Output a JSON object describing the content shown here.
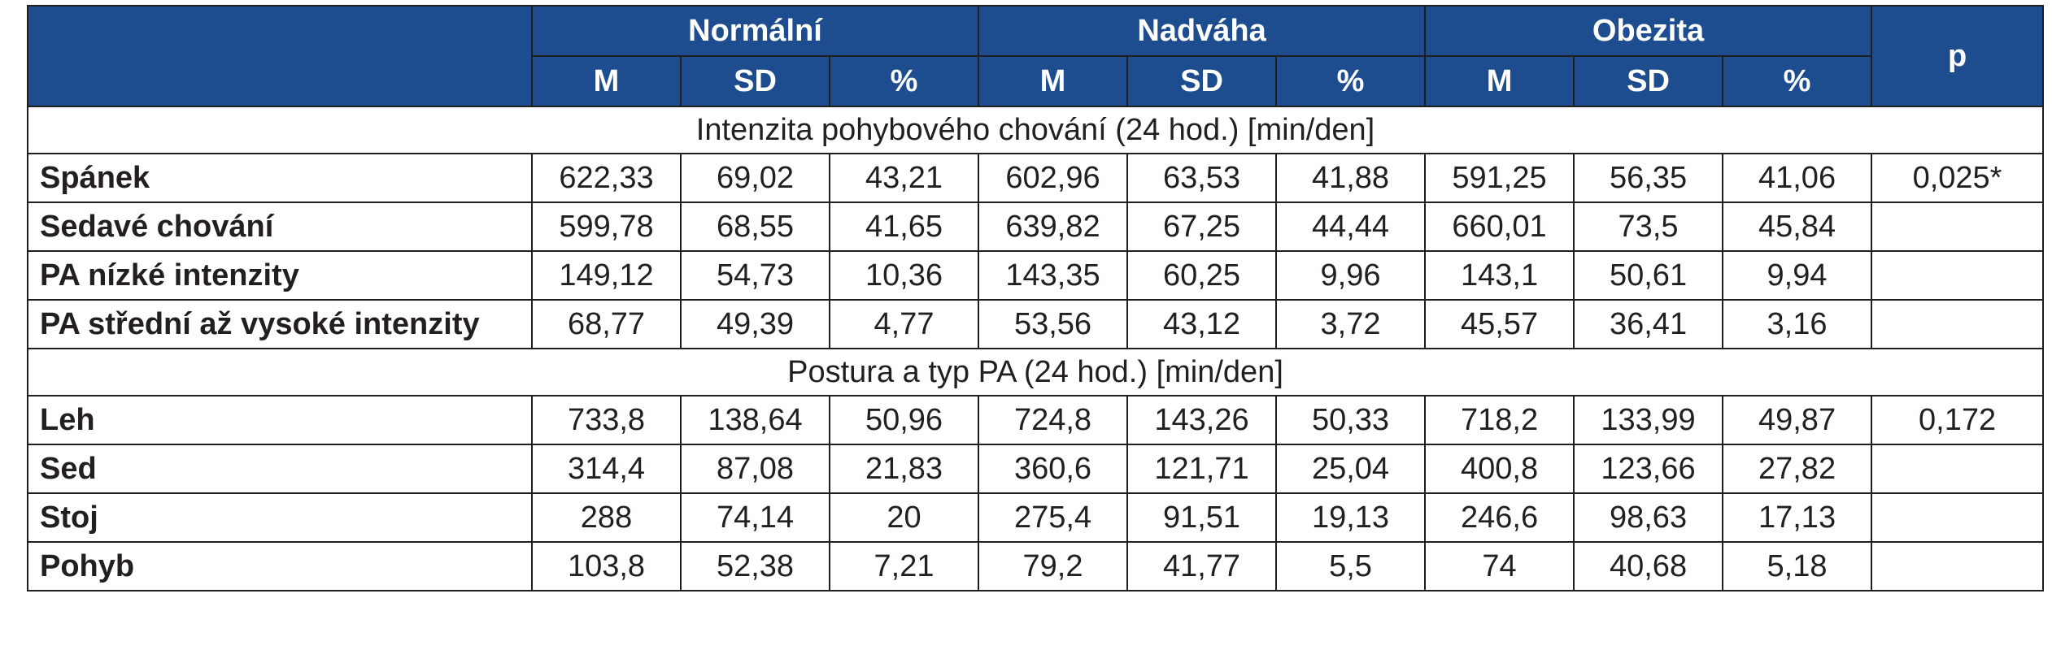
{
  "groups": [
    "Normální",
    "Nadváha",
    "Obezita"
  ],
  "p_header": "p",
  "sub_headers": [
    "M",
    "SD",
    "%",
    "M",
    "SD",
    "%",
    "M",
    "SD",
    "%"
  ],
  "sections": [
    {
      "title": "Intenzita pohybového chování (24 hod.) [min/den]",
      "rows": [
        {
          "label": "Spánek",
          "values": [
            "622,33",
            "69,02",
            "43,21",
            "602,96",
            "63,53",
            "41,88",
            "591,25",
            "56,35",
            "41,06"
          ],
          "p": "0,025*"
        },
        {
          "label": "Sedavé chování",
          "values": [
            "599,78",
            "68,55",
            "41,65",
            "639,82",
            "67,25",
            "44,44",
            "660,01",
            "73,5",
            "45,84"
          ],
          "p": ""
        },
        {
          "label": "PA nízké intenzity",
          "values": [
            "149,12",
            "54,73",
            "10,36",
            "143,35",
            "60,25",
            "9,96",
            "143,1",
            "50,61",
            "9,94"
          ],
          "p": ""
        },
        {
          "label": "PA střední až vysoké intenzity",
          "values": [
            "68,77",
            "49,39",
            "4,77",
            "53,56",
            "43,12",
            "3,72",
            "45,57",
            "36,41",
            "3,16"
          ],
          "p": ""
        }
      ]
    },
    {
      "title": "Postura a typ PA (24 hod.) [min/den]",
      "rows": [
        {
          "label": "Leh",
          "values": [
            "733,8",
            "138,64",
            "50,96",
            "724,8",
            "143,26",
            "50,33",
            "718,2",
            "133,99",
            "49,87"
          ],
          "p": "0,172"
        },
        {
          "label": "Sed",
          "values": [
            "314,4",
            "87,08",
            "21,83",
            "360,6",
            "121,71",
            "25,04",
            "400,8",
            "123,66",
            "27,82"
          ],
          "p": ""
        },
        {
          "label": "Stoj",
          "values": [
            "288",
            "74,14",
            "20",
            "275,4",
            "91,51",
            "19,13",
            "246,6",
            "98,63",
            "17,13"
          ],
          "p": ""
        },
        {
          "label": "Pohyb",
          "values": [
            "103,8",
            "52,38",
            "7,21",
            "79,2",
            "41,77",
            "5,5",
            "74",
            "40,68",
            "5,18"
          ],
          "p": ""
        }
      ]
    }
  ],
  "colors": {
    "header_bg": "#1d4d8e",
    "header_text": "#ffffff",
    "border": "#1f1f1f"
  }
}
